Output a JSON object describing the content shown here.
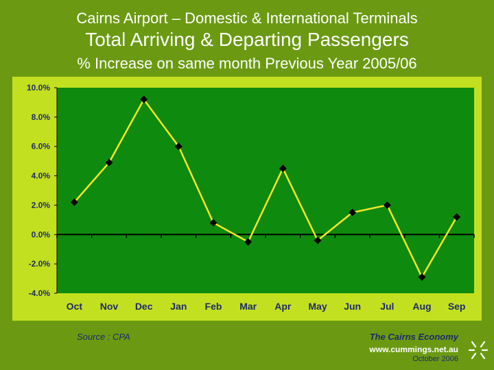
{
  "header": {
    "line1": "Cairns Airport – Domestic & International Terminals",
    "line2": "Total Arriving & Departing Passengers",
    "line3": "% Increase on same month Previous Year 2005/06"
  },
  "footer": {
    "source": "Source : CPA",
    "brand": "The Cairns Economy",
    "url": "www.cummings.net.au",
    "date": "October 2006"
  },
  "colors": {
    "background": "#6b9a12",
    "panel": "#c3e020",
    "plot_area": "#0e8a0e",
    "line": "#f5e62a",
    "marker": "#000000"
  },
  "icons": {
    "logo": "star-burst-logo-icon"
  },
  "chart_data": {
    "type": "line",
    "title": "Total Arriving & Departing Passengers",
    "subtitle": "% Increase on same month Previous Year 2005/06",
    "xlabel": "",
    "ylabel": "",
    "categories": [
      "Oct",
      "Nov",
      "Dec",
      "Jan",
      "Feb",
      "Mar",
      "Apr",
      "May",
      "Jun",
      "Jul",
      "Aug",
      "Sep"
    ],
    "series": [
      {
        "name": "% Increase",
        "values": [
          2.2,
          4.9,
          9.2,
          6.0,
          0.8,
          -0.5,
          4.5,
          -0.4,
          1.5,
          2.0,
          -2.9,
          1.2
        ]
      }
    ],
    "ylim": [
      -4,
      10
    ],
    "yticks": [
      10,
      8,
      6,
      4,
      2,
      0,
      -2,
      -4
    ],
    "ytick_labels": [
      "10.0%",
      "8.0%",
      "6.0%",
      "4.0%",
      "2.0%",
      "0.0%",
      "-2.0%",
      "-4.0%"
    ],
    "grid": false,
    "legend": "none"
  }
}
